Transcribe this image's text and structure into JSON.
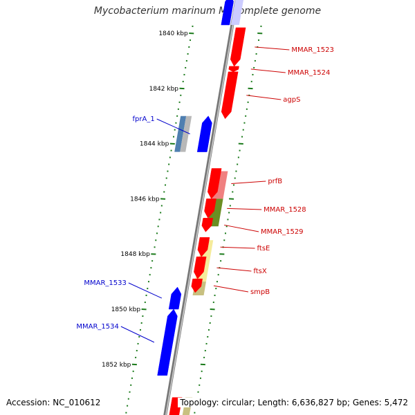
{
  "title": "Mycobacterium marinum M, complete genome",
  "footer": {
    "accession": "Accession: NC_010612",
    "topology": "Topology: circular; Length: 6,636,827 bp; Genes: 5,472"
  },
  "colors": {
    "backbone": "#888888",
    "tick": "#1a7a1a",
    "forward_label": "#cc0000",
    "reverse_label": "#0000cc",
    "gene_red": "#ff0000",
    "gene_blue": "#0000ff",
    "band_pink": "#f08080",
    "band_olive": "#6b8e23",
    "band_yellow": "#f5eb9a",
    "band_khaki": "#c8c080",
    "band_steelblue": "#4f7fb0",
    "band_gray": "#b8b8b8"
  },
  "ticks": [
    {
      "label": "1840 kbp",
      "kbp": 1840
    },
    {
      "label": "1842 kbp",
      "kbp": 1842
    },
    {
      "label": "1844 kbp",
      "kbp": 1844
    },
    {
      "label": "1846 kbp",
      "kbp": 1846
    },
    {
      "label": "1848 kbp",
      "kbp": 1848
    },
    {
      "label": "1850 kbp",
      "kbp": 1850
    },
    {
      "label": "1852 kbp",
      "kbp": 1852
    }
  ],
  "forward_genes": [
    {
      "name": "MMAR_1523",
      "start": 1839.8,
      "end": 1841.2
    },
    {
      "name": "MMAR_1524",
      "start": 1841.2,
      "end": 1841.4
    },
    {
      "name": "agpS",
      "start": 1841.4,
      "end": 1843.1
    },
    {
      "name": "prfB",
      "start": 1844.9,
      "end": 1846.0
    },
    {
      "name": "MMAR_1528",
      "start": 1846.0,
      "end": 1846.7
    },
    {
      "name": "MMAR_1529",
      "start": 1846.7,
      "end": 1847.2
    },
    {
      "name": "ftsE",
      "start": 1847.4,
      "end": 1848.1
    },
    {
      "name": "ftsX",
      "start": 1848.1,
      "end": 1848.9
    },
    {
      "name": "smpB",
      "start": 1848.9,
      "end": 1849.4
    }
  ],
  "reverse_genes": [
    {
      "name": "fprA_1",
      "start": 1843.0,
      "end": 1844.3
    },
    {
      "name": "MMAR_1533",
      "start": 1849.2,
      "end": 1850.0
    },
    {
      "name": "MMAR_1534",
      "start": 1850.0,
      "end": 1852.4
    }
  ],
  "bands": [
    {
      "color": "band_pink",
      "start": 1845.0,
      "end": 1846.0
    },
    {
      "color": "band_olive",
      "start": 1846.0,
      "end": 1847.0
    },
    {
      "color": "band_yellow",
      "start": 1847.5,
      "end": 1849.0
    },
    {
      "color": "band_khaki",
      "start": 1849.0,
      "end": 1849.5
    },
    {
      "color": "band_steelblue",
      "start": 1843.0,
      "end": 1844.3
    },
    {
      "color": "band_gray",
      "start": 1843.0,
      "end": 1844.3
    }
  ]
}
